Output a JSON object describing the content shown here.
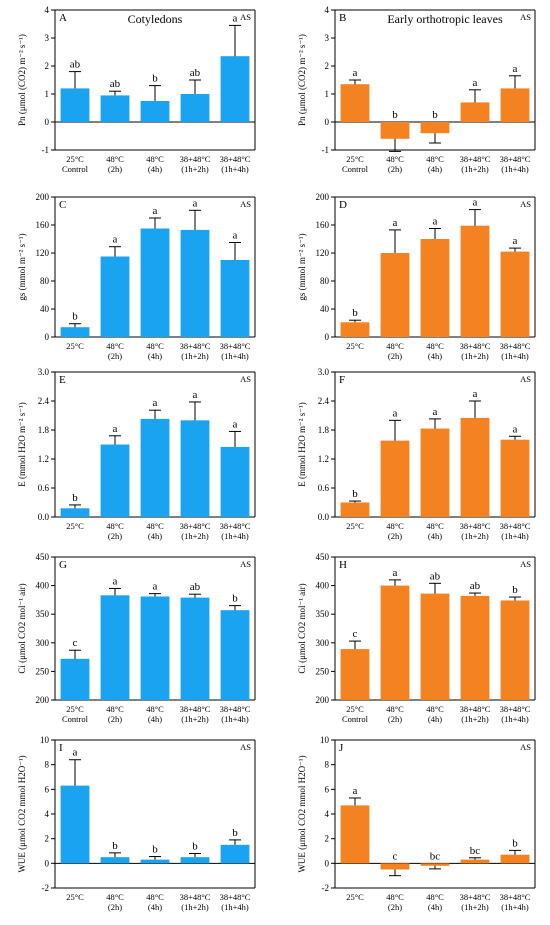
{
  "colors": {
    "blue": "#1aa3f0",
    "orange": "#f58220"
  },
  "charts": [
    {
      "panel": "A",
      "title": "Cotyledons",
      "tag": "AS",
      "color": "#1aa3f0",
      "ylabel": "Pn (μmol (CO2) m⁻² s⁻¹)",
      "ylim": [
        -1,
        4
      ],
      "yticks": [
        -1,
        0,
        1,
        2,
        3,
        4
      ],
      "ytick_labels": [
        "-1",
        "0",
        "1",
        "2",
        "3",
        "4"
      ],
      "categories": [
        [
          "25°C",
          "Control"
        ],
        [
          "48°C",
          "(2h)"
        ],
        [
          "48°C",
          "(4h)"
        ],
        [
          "38+48°C",
          "(1h+2h)"
        ],
        [
          "38+48°C",
          "(1h+4h)"
        ]
      ],
      "values": [
        1.2,
        0.95,
        0.75,
        1.0,
        2.35
      ],
      "errors": [
        0.6,
        0.15,
        0.55,
        0.5,
        1.1
      ],
      "letters": [
        "ab",
        "ab",
        "b",
        "ab",
        "a"
      ]
    },
    {
      "panel": "B",
      "title": "Early orthotropic leaves",
      "tag": "AS",
      "color": "#f58220",
      "ylabel": "Pn (μmol (CO2) m⁻² s⁻¹)",
      "ylim": [
        -1,
        4
      ],
      "yticks": [
        -1,
        0,
        1,
        2,
        3,
        4
      ],
      "ytick_labels": [
        "-1",
        "0",
        "1",
        "2",
        "3",
        "4"
      ],
      "categories": [
        [
          "25°C",
          "Control"
        ],
        [
          "48°C",
          "(2h)"
        ],
        [
          "48°C",
          "(4h)"
        ],
        [
          "38+48°C",
          "(1h+2h)"
        ],
        [
          "38+48°C",
          "(1h+4h)"
        ]
      ],
      "values": [
        1.35,
        -0.6,
        -0.4,
        0.7,
        1.2
      ],
      "errors": [
        0.15,
        0.45,
        0.35,
        0.45,
        0.45
      ],
      "letters": [
        "a",
        "b",
        "b",
        "a",
        "a"
      ]
    },
    {
      "panel": "C",
      "title": "",
      "tag": "AS",
      "color": "#1aa3f0",
      "ylabel": "gs (mmol m⁻² s⁻¹)",
      "ylim": [
        0,
        200
      ],
      "yticks": [
        0,
        40,
        80,
        120,
        160,
        200
      ],
      "ytick_labels": [
        "0",
        "40",
        "80",
        "120",
        "160",
        "200"
      ],
      "categories": [
        [
          "25°C",
          ""
        ],
        [
          "48°C",
          "(2h)"
        ],
        [
          "48°C",
          "(4h)"
        ],
        [
          "38+48°C",
          "(1h+2h)"
        ],
        [
          "38+48°C",
          "(1h+4h)"
        ]
      ],
      "values": [
        14,
        115,
        155,
        153,
        110
      ],
      "errors": [
        5,
        14,
        15,
        28,
        25
      ],
      "letters": [
        "b",
        "a",
        "a",
        "a",
        "a"
      ]
    },
    {
      "panel": "D",
      "title": "",
      "tag": "AS",
      "color": "#f58220",
      "ylabel": "gs (mmol m⁻² s⁻¹)",
      "ylim": [
        0,
        200
      ],
      "yticks": [
        0,
        40,
        80,
        120,
        160,
        200
      ],
      "ytick_labels": [
        "0",
        "40",
        "80",
        "120",
        "160",
        "200"
      ],
      "categories": [
        [
          "25°C",
          ""
        ],
        [
          "48°C",
          "(2h)"
        ],
        [
          "48°C",
          "(4h)"
        ],
        [
          "38+48°C",
          "(1h+2h)"
        ],
        [
          "38+48°C",
          "(1h+4h)"
        ]
      ],
      "values": [
        21,
        120,
        140,
        159,
        122
      ],
      "errors": [
        3,
        33,
        15,
        23,
        5
      ],
      "letters": [
        "b",
        "a",
        "a",
        "a",
        "a"
      ]
    },
    {
      "panel": "E",
      "title": "",
      "tag": "AS",
      "color": "#1aa3f0",
      "ylabel": "E (mmol H2O m⁻² s⁻¹)",
      "ylim": [
        0,
        3
      ],
      "yticks": [
        0,
        0.6,
        1.2,
        1.8,
        2.4,
        3.0
      ],
      "ytick_labels": [
        "0.0",
        "0.6",
        "1.2",
        "1.8",
        "2.4",
        "3.0"
      ],
      "categories": [
        [
          "25°C",
          ""
        ],
        [
          "48°C",
          "(2h)"
        ],
        [
          "48°C",
          "(4h)"
        ],
        [
          "38+48°C",
          "(1h+2h)"
        ],
        [
          "38+48°C",
          "(1h+4h)"
        ]
      ],
      "values": [
        0.18,
        1.5,
        2.03,
        2.0,
        1.45
      ],
      "errors": [
        0.07,
        0.18,
        0.18,
        0.38,
        0.32
      ],
      "letters": [
        "b",
        "a",
        "a",
        "a",
        "a"
      ]
    },
    {
      "panel": "F",
      "title": "",
      "tag": "AS",
      "color": "#f58220",
      "ylabel": "E (mmol H2O m⁻² s⁻¹)",
      "ylim": [
        0,
        3
      ],
      "yticks": [
        0,
        0.6,
        1.2,
        1.8,
        2.4,
        3.0
      ],
      "ytick_labels": [
        "0.0",
        "0.6",
        "1.2",
        "1.8",
        "2.4",
        "3.0"
      ],
      "categories": [
        [
          "25°C",
          ""
        ],
        [
          "48°C",
          "(2h)"
        ],
        [
          "48°C",
          "(4h)"
        ],
        [
          "38+48°C",
          "(1h+2h)"
        ],
        [
          "38+48°C",
          "(1h+4h)"
        ]
      ],
      "values": [
        0.3,
        1.58,
        1.83,
        2.05,
        1.6
      ],
      "errors": [
        0.03,
        0.42,
        0.2,
        0.35,
        0.07
      ],
      "letters": [
        "b",
        "a",
        "a",
        "a",
        "a"
      ]
    },
    {
      "panel": "G",
      "title": "",
      "tag": "AS",
      "color": "#1aa3f0",
      "ylabel": "Ci (μmol CO2 mol⁻¹ air)",
      "ylim": [
        200,
        450
      ],
      "yticks": [
        200,
        250,
        300,
        350,
        400,
        450
      ],
      "ytick_labels": [
        "200",
        "250",
        "300",
        "350",
        "400",
        "450"
      ],
      "categories": [
        [
          "25°C",
          "Control"
        ],
        [
          "48°C",
          "(2h)"
        ],
        [
          "48°C",
          "(4h)"
        ],
        [
          "38+48°C",
          "(1h+2h)"
        ],
        [
          "38+48°C",
          "(1h+4h)"
        ]
      ],
      "values": [
        272,
        383,
        381,
        379,
        357
      ],
      "errors": [
        15,
        12,
        5,
        6,
        8
      ],
      "letters": [
        "c",
        "a",
        "a",
        "ab",
        "b"
      ]
    },
    {
      "panel": "H",
      "title": "",
      "tag": "AS",
      "color": "#f58220",
      "ylabel": "Ci (μmol CO2 mol⁻¹ air)",
      "ylim": [
        200,
        450
      ],
      "yticks": [
        200,
        250,
        300,
        350,
        400,
        450
      ],
      "ytick_labels": [
        "200",
        "250",
        "300",
        "350",
        "400",
        "450"
      ],
      "categories": [
        [
          "25°C",
          "Control"
        ],
        [
          "48°C",
          "(2h)"
        ],
        [
          "48°C",
          "(4h)"
        ],
        [
          "38+48°C",
          "(1h+2h)"
        ],
        [
          "38+48°C",
          "(1h+4h)"
        ]
      ],
      "values": [
        289,
        400,
        386,
        382,
        374
      ],
      "errors": [
        14,
        10,
        18,
        5,
        6
      ],
      "letters": [
        "c",
        "a",
        "ab",
        "ab",
        "b"
      ]
    },
    {
      "panel": "I",
      "title": "",
      "tag": "AS",
      "color": "#1aa3f0",
      "ylabel": "WUE (μmol CO2 mmol H2O⁻¹)",
      "ylim": [
        -2,
        10
      ],
      "yticks": [
        -2,
        0,
        2,
        4,
        6,
        8,
        10
      ],
      "ytick_labels": [
        "-2",
        "0",
        "2",
        "4",
        "6",
        "8",
        "10"
      ],
      "categories": [
        [
          "25°C",
          ""
        ],
        [
          "48°C",
          "(2h)"
        ],
        [
          "48°C",
          "(4h)"
        ],
        [
          "38+48°C",
          "(1h+2h)"
        ],
        [
          "38+48°C",
          "(1h+4h)"
        ]
      ],
      "values": [
        6.3,
        0.5,
        0.3,
        0.5,
        1.5
      ],
      "errors": [
        2.1,
        0.35,
        0.25,
        0.3,
        0.4
      ],
      "letters": [
        "a",
        "b",
        "b",
        "b",
        "b"
      ]
    },
    {
      "panel": "J",
      "title": "",
      "tag": "AS",
      "color": "#f58220",
      "ylabel": "WUE (μmol CO2 mmol H2O⁻¹)",
      "ylim": [
        -2,
        10
      ],
      "yticks": [
        -2,
        0,
        2,
        4,
        6,
        8,
        10
      ],
      "ytick_labels": [
        "-2",
        "0",
        "2",
        "4",
        "6",
        "8",
        "10"
      ],
      "categories": [
        [
          "25°C",
          ""
        ],
        [
          "48°C",
          "(2h)"
        ],
        [
          "48°C",
          "(4h)"
        ],
        [
          "38+48°C",
          "(1h+2h)"
        ],
        [
          "38+48°C",
          "(1h+4h)"
        ]
      ],
      "values": [
        4.7,
        -0.5,
        -0.2,
        0.3,
        0.7
      ],
      "errors": [
        0.6,
        0.5,
        0.25,
        0.15,
        0.35
      ],
      "letters": [
        "a",
        "c",
        "bc",
        "bc",
        "b"
      ]
    }
  ]
}
